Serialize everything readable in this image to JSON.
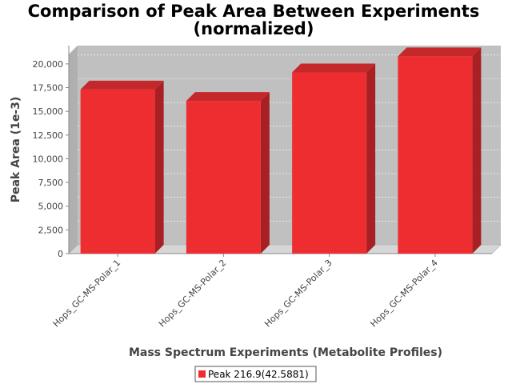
{
  "chart_data": {
    "type": "bar",
    "title": [
      "Comparison of Peak Area Between Experiments",
      "(normalized)"
    ],
    "xlabel": "Mass Spectrum Experiments (Metabolite Profiles)",
    "ylabel": "Peak Area (1e-3)",
    "categories": [
      "Hops_GC-MS-Polar_1",
      "Hops_GC-MS-Polar_2",
      "Hops_GC-MS-Polar_3",
      "Hops_GC-MS-Polar_4"
    ],
    "series": [
      {
        "name": "Peak 216.9(42.5881)",
        "values": [
          17300,
          16100,
          19100,
          20800
        ],
        "color": "#ee2d30"
      }
    ],
    "ylim": [
      0,
      21000
    ],
    "yticks": [
      0,
      2500,
      5000,
      7500,
      10000,
      12500,
      15000,
      17500,
      20000
    ],
    "ytick_labels": [
      "0",
      "2,500",
      "5,000",
      "7,500",
      "10,000",
      "12,500",
      "15,000",
      "17,500",
      "20,000"
    ],
    "grid": true,
    "legend_position": "bottom",
    "plot_background": "#c0c0c0"
  }
}
